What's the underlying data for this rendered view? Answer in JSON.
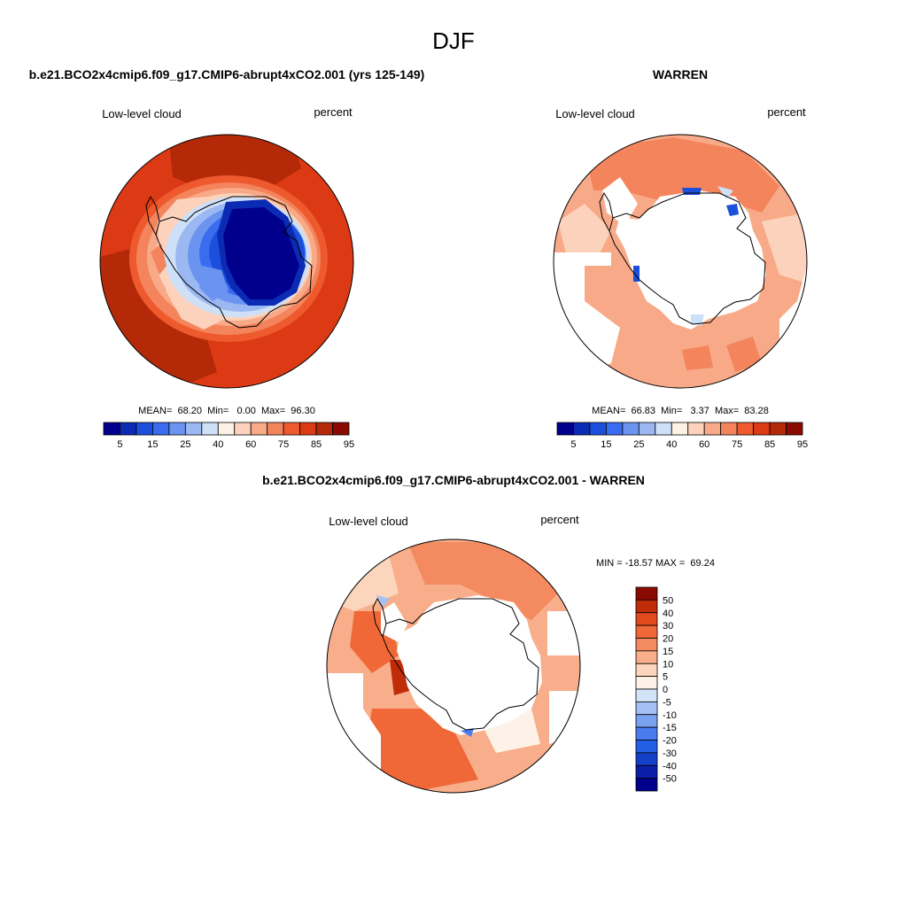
{
  "page": {
    "season": "DJF",
    "left_title": "b.e21.BCO2x4cmip6.f09_g17.CMIP6-abrupt4xCO2.001 (yrs 125-149)",
    "right_title": "WARREN",
    "diff_title": "b.e21.BCO2x4cmip6.f09_g17.CMIP6-abrupt4xCO2.001 - WARREN"
  },
  "panels": [
    {
      "id": "model",
      "variable": "Low-level cloud",
      "units": "percent",
      "stats_text": "MEAN=  68.20  Min=   0.00  Max=  96.30"
    },
    {
      "id": "obs",
      "variable": "Low-level cloud",
      "units": "percent",
      "stats_text": "MEAN=  66.83  Min=   3.37  Max=  83.28"
    },
    {
      "id": "diff",
      "variable": "Low-level cloud",
      "units": "percent",
      "stats_text": "MIN = -18.57 MAX =  69.24"
    }
  ],
  "colorbars": {
    "absolute": {
      "colors": [
        "#00008c",
        "#0c2bb4",
        "#1c50dc",
        "#3a6cf0",
        "#6a94f0",
        "#9cb8f2",
        "#cde0f8",
        "#fdf0e4",
        "#fcd2bc",
        "#f8aa88",
        "#f4845c",
        "#ee5a2e",
        "#dc3a14",
        "#b42a08",
        "#8a0a02"
      ],
      "labels": [
        "5",
        "15",
        "25",
        "40",
        "60",
        "75",
        "85",
        "95"
      ]
    },
    "difference": {
      "colors": [
        "#00008c",
        "#0a1eaa",
        "#1440c8",
        "#2460e6",
        "#4a7cf0",
        "#7aa0f0",
        "#a4c0f4",
        "#d4e4f8",
        "#fef2e8",
        "#fcd6bc",
        "#f8ae8a",
        "#f48a60",
        "#f06838",
        "#e04a1c",
        "#c02c08",
        "#8a0a02"
      ],
      "labels": [
        "50",
        "40",
        "30",
        "20",
        "15",
        "10",
        "5",
        "0",
        "-5",
        "-10",
        "-15",
        "-20",
        "-30",
        "-40",
        "-50"
      ]
    }
  },
  "map_data": {
    "type": "polar-stereographic contour map",
    "region": "Southern Hemisphere",
    "panels": [
      {
        "id": "model",
        "sectors": [
          {
            "from_deg": 0,
            "to_deg": 360,
            "level": "95",
            "color": "#b42a08"
          },
          {
            "from_deg": 60,
            "to_deg": 300,
            "level": "85",
            "color": "#dc3a14"
          },
          {
            "inner": "Antarctic continent",
            "level": "5",
            "color": "#00008c"
          }
        ]
      },
      {
        "id": "obs",
        "sectors": [
          {
            "from_deg": 0,
            "to_deg": 360,
            "level": "75",
            "color": "#f8aa88"
          },
          {
            "from_deg": 320,
            "to_deg": 60,
            "level": "85",
            "color": "#f4845c"
          },
          {
            "inner": "Antarctic continent",
            "level": "missing",
            "color": "#ffffff"
          }
        ]
      },
      {
        "id": "diff",
        "sectors": [
          {
            "from_deg": 0,
            "to_deg": 360,
            "level": "15",
            "color": "#f8ae8a"
          },
          {
            "from_deg": 200,
            "to_deg": 260,
            "level": "20",
            "color": "#f06838"
          },
          {
            "inner": "Antarctic continent",
            "level": "missing",
            "color": "#ffffff"
          }
        ]
      }
    ]
  }
}
